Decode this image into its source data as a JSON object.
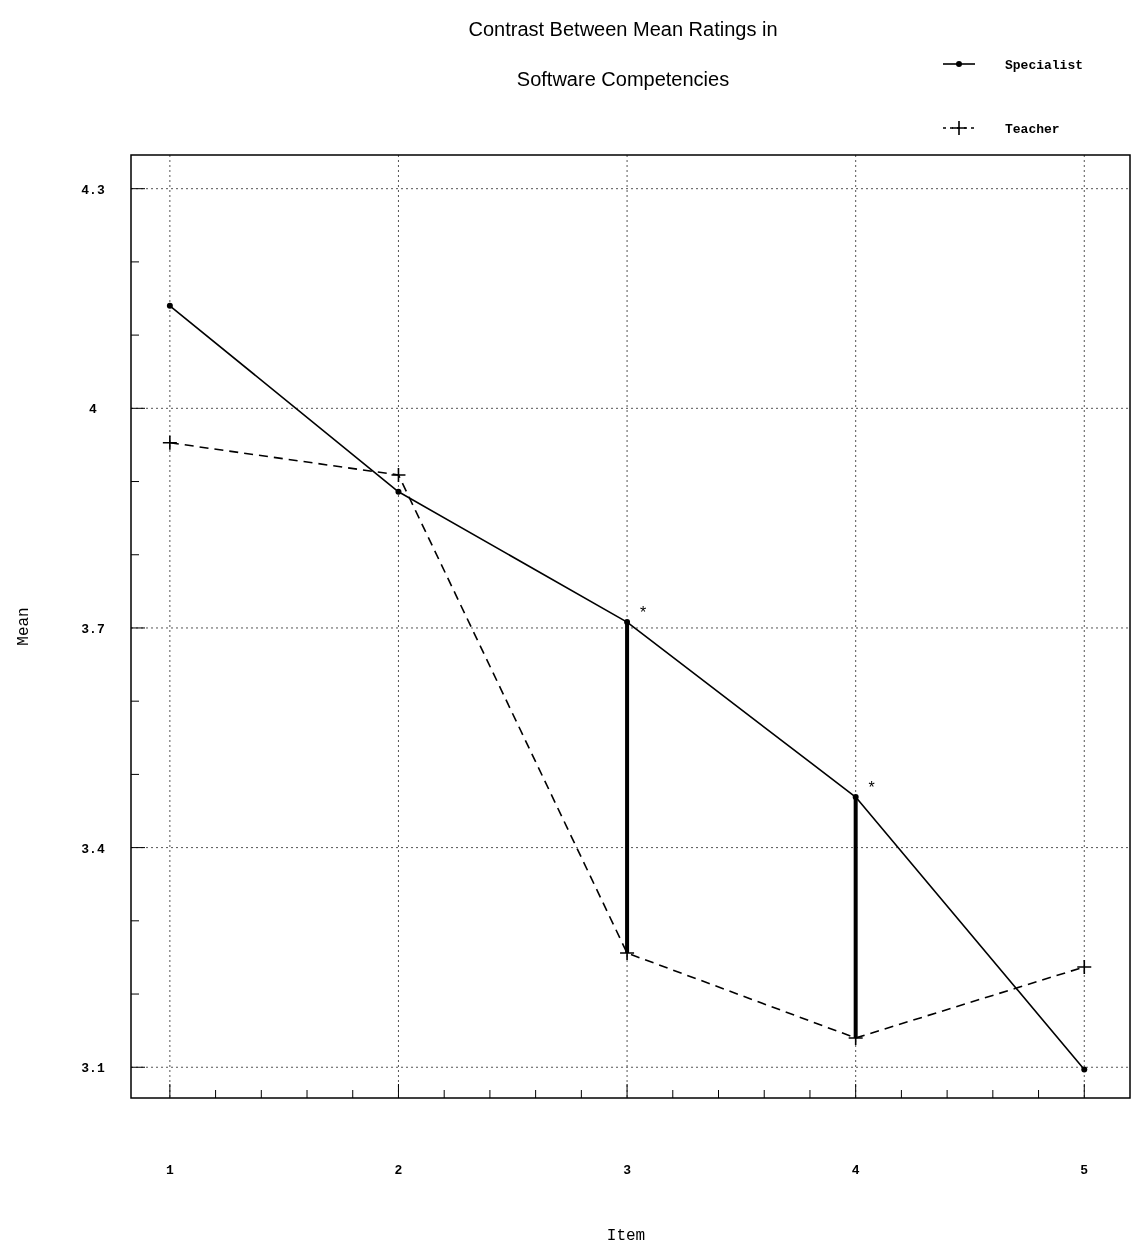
{
  "chart_data": {
    "type": "line",
    "title": "Contrast Between Mean Ratings in Software Competencies",
    "xlabel": "Item",
    "ylabel": "Mean",
    "x": [
      1,
      2,
      3,
      4,
      5
    ],
    "series": [
      {
        "name": "Specialist",
        "color": "#000000",
        "values": [
          4.14,
          3.886,
          3.708,
          3.469,
          3.097
        ],
        "marker": "circle",
        "line_style": "solid"
      },
      {
        "name": "Teacher",
        "color": "#000000",
        "values": [
          3.953,
          3.909,
          3.256,
          3.14,
          3.237
        ],
        "marker": "cross",
        "line_style": "dashed"
      }
    ],
    "xlim": [
      0.83,
      5.2
    ],
    "ylim": [
      3.058,
      4.346
    ],
    "xticks": [
      1,
      {
        "value": 1.2,
        "label": null
      },
      {
        "value": 1.4,
        "label": null
      },
      {
        "value": 1.6,
        "label": null
      },
      {
        "value": 1.8,
        "label": null
      },
      2,
      {
        "value": 2.2,
        "label": null
      },
      {
        "value": 2.4,
        "label": null
      },
      {
        "value": 2.6,
        "label": null
      },
      {
        "value": 2.8,
        "label": null
      },
      3,
      {
        "value": 3.2,
        "label": null
      },
      {
        "value": 3.4,
        "label": null
      },
      {
        "value": 3.6,
        "label": null
      },
      {
        "value": 3.8,
        "label": null
      },
      4,
      {
        "value": 4.2,
        "label": null
      },
      {
        "value": 4.4,
        "label": null
      },
      {
        "value": 4.6,
        "label": null
      },
      {
        "value": 4.8,
        "label": null
      },
      5
    ],
    "yticks": [
      3.1,
      {
        "value": 3.2,
        "label": null
      },
      {
        "value": 3.3,
        "label": null
      },
      3.4,
      {
        "value": 3.5,
        "label": null
      },
      {
        "value": 3.6,
        "label": null
      },
      3.7,
      {
        "value": 3.8,
        "label": null
      },
      {
        "value": 3.9,
        "label": null
      },
      4,
      {
        "value": 4.1,
        "label": null
      },
      {
        "value": 4.2,
        "label": null
      },
      4.3
    ],
    "annotations": [
      {
        "text": "*",
        "x": 3,
        "y": 3.708
      },
      {
        "text": "*",
        "x": 4,
        "y": 3.469
      }
    ],
    "grid": true,
    "legend": "top right"
  }
}
